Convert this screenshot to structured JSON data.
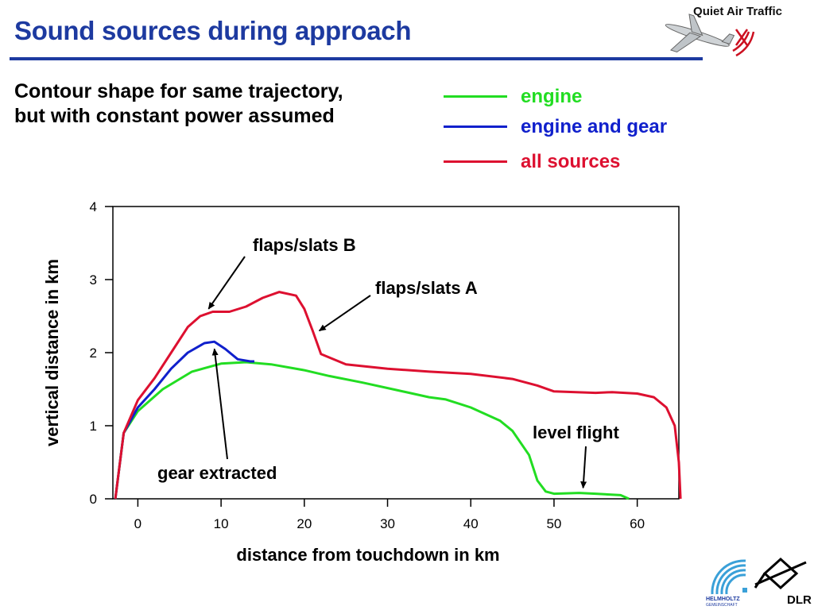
{
  "slide": {
    "title": "Sound sources during approach",
    "subtitle_lines": [
      "Contour shape for same trajectory,",
      "but with constant power assumed"
    ],
    "brand_text": "Quiet Air Traffic",
    "logos": {
      "helmholtz": "HELMHOLTZ GEMEINSCHAFT",
      "dlr": "DLR"
    },
    "colors": {
      "title": "#1d3aa0",
      "engine": "#22dd22",
      "engine_and_gear": "#1020cc",
      "all_sources": "#dd1030"
    }
  },
  "chart_data": {
    "type": "line",
    "xlabel": "distance from touchdown in km",
    "ylabel": "vertical distance in km",
    "xlim": [
      -3,
      65
    ],
    "ylim": [
      0,
      4
    ],
    "xticks": [
      0,
      10,
      20,
      30,
      40,
      50,
      60
    ],
    "yticks": [
      0,
      1,
      2,
      3,
      4
    ],
    "legend_position": "top-right, above plot",
    "series": [
      {
        "name": "engine",
        "color": "#22dd22",
        "points": [
          [
            -2.7,
            0
          ],
          [
            -1.7,
            0.9
          ],
          [
            0,
            1.2
          ],
          [
            3,
            1.5
          ],
          [
            6.5,
            1.74
          ],
          [
            10,
            1.85
          ],
          [
            13,
            1.87
          ],
          [
            16,
            1.84
          ],
          [
            20,
            1.76
          ],
          [
            23,
            1.68
          ],
          [
            27,
            1.59
          ],
          [
            31,
            1.49
          ],
          [
            35,
            1.39
          ],
          [
            37,
            1.36
          ],
          [
            40,
            1.25
          ],
          [
            43.5,
            1.07
          ],
          [
            45,
            0.93
          ],
          [
            47,
            0.6
          ],
          [
            48,
            0.25
          ],
          [
            49,
            0.1
          ],
          [
            50,
            0.07
          ],
          [
            53,
            0.08
          ],
          [
            55,
            0.07
          ],
          [
            58,
            0.05
          ],
          [
            59,
            0
          ]
        ]
      },
      {
        "name": "engine and gear",
        "color": "#1020cc",
        "points": [
          [
            -2.7,
            0
          ],
          [
            -1.7,
            0.9
          ],
          [
            0,
            1.25
          ],
          [
            2,
            1.5
          ],
          [
            4,
            1.78
          ],
          [
            6,
            2.0
          ],
          [
            8,
            2.13
          ],
          [
            9.2,
            2.15
          ],
          [
            10.5,
            2.05
          ],
          [
            12,
            1.91
          ],
          [
            13.5,
            1.88
          ],
          [
            14,
            1.88
          ]
        ]
      },
      {
        "name": "all sources",
        "color": "#dd1030",
        "points": [
          [
            -2.7,
            0
          ],
          [
            -1.7,
            0.9
          ],
          [
            0,
            1.35
          ],
          [
            2,
            1.65
          ],
          [
            4,
            2.0
          ],
          [
            6,
            2.35
          ],
          [
            7.5,
            2.5
          ],
          [
            9,
            2.56
          ],
          [
            11,
            2.56
          ],
          [
            13,
            2.63
          ],
          [
            15,
            2.75
          ],
          [
            17,
            2.83
          ],
          [
            19,
            2.78
          ],
          [
            20,
            2.6
          ],
          [
            21,
            2.3
          ],
          [
            22,
            1.98
          ],
          [
            25,
            1.84
          ],
          [
            30,
            1.78
          ],
          [
            35,
            1.74
          ],
          [
            40,
            1.71
          ],
          [
            45,
            1.64
          ],
          [
            48,
            1.55
          ],
          [
            50,
            1.47
          ],
          [
            55,
            1.45
          ],
          [
            57,
            1.46
          ],
          [
            60,
            1.44
          ],
          [
            62,
            1.39
          ],
          [
            63.5,
            1.25
          ],
          [
            64.5,
            1.0
          ],
          [
            65,
            0.5
          ],
          [
            65.2,
            0
          ]
        ]
      }
    ],
    "annotations": [
      {
        "text": "flaps/slats B",
        "points_to": [
          8.5,
          2.6
        ]
      },
      {
        "text": "flaps/slats A",
        "points_to": [
          21.8,
          2.3
        ]
      },
      {
        "text": "gear extracted",
        "points_to": [
          9.2,
          2.05
        ]
      },
      {
        "text": "level flight",
        "points_to": [
          53.5,
          0.15
        ]
      }
    ]
  }
}
